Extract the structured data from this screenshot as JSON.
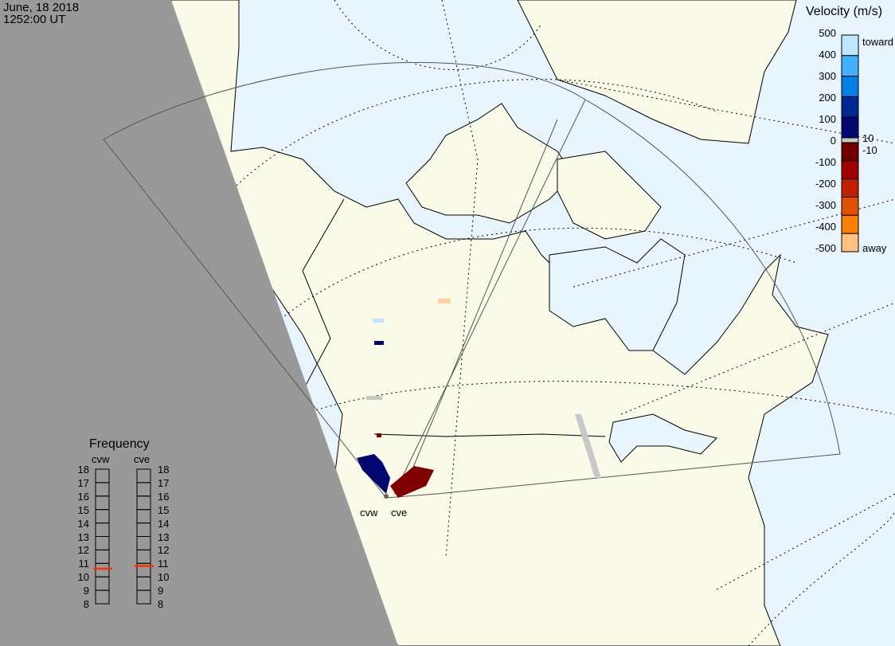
{
  "header": {
    "date": "June, 18 2018",
    "time": "1252:00 UT"
  },
  "colorbar": {
    "title": "Velocity (m/s)",
    "ticks": [
      "500",
      "400",
      "300",
      "200",
      "100",
      "0",
      "-100",
      "-200",
      "-300",
      "-400",
      "-500"
    ],
    "toward_label": "toward",
    "away_label": "away",
    "ground_scatter_upper": "10",
    "ground_scatter_lower": "-10",
    "colors": [
      "#bfe6ff",
      "#40b0ff",
      "#0080e8",
      "#0050c0",
      "#002890",
      "#000870",
      "#c8c8c8",
      "#700000",
      "#a00000",
      "#c02000",
      "#e05000",
      "#ff8000",
      "#ffc080"
    ]
  },
  "frequency": {
    "title": "Frequency",
    "radars": [
      {
        "name": "cvw",
        "value_mhz": 10.6
      },
      {
        "name": "cve",
        "value_mhz": 10.8
      }
    ],
    "ticks": [
      "18",
      "17",
      "16",
      "15",
      "14",
      "13",
      "12",
      "11",
      "10",
      "9",
      "8"
    ],
    "marker_color": "#ff3000"
  },
  "map": {
    "site_labels": [
      "cvw",
      "cve"
    ],
    "colors": {
      "ocean": "#e8f5fd",
      "land": "#fafae8",
      "night": "#999999"
    }
  }
}
